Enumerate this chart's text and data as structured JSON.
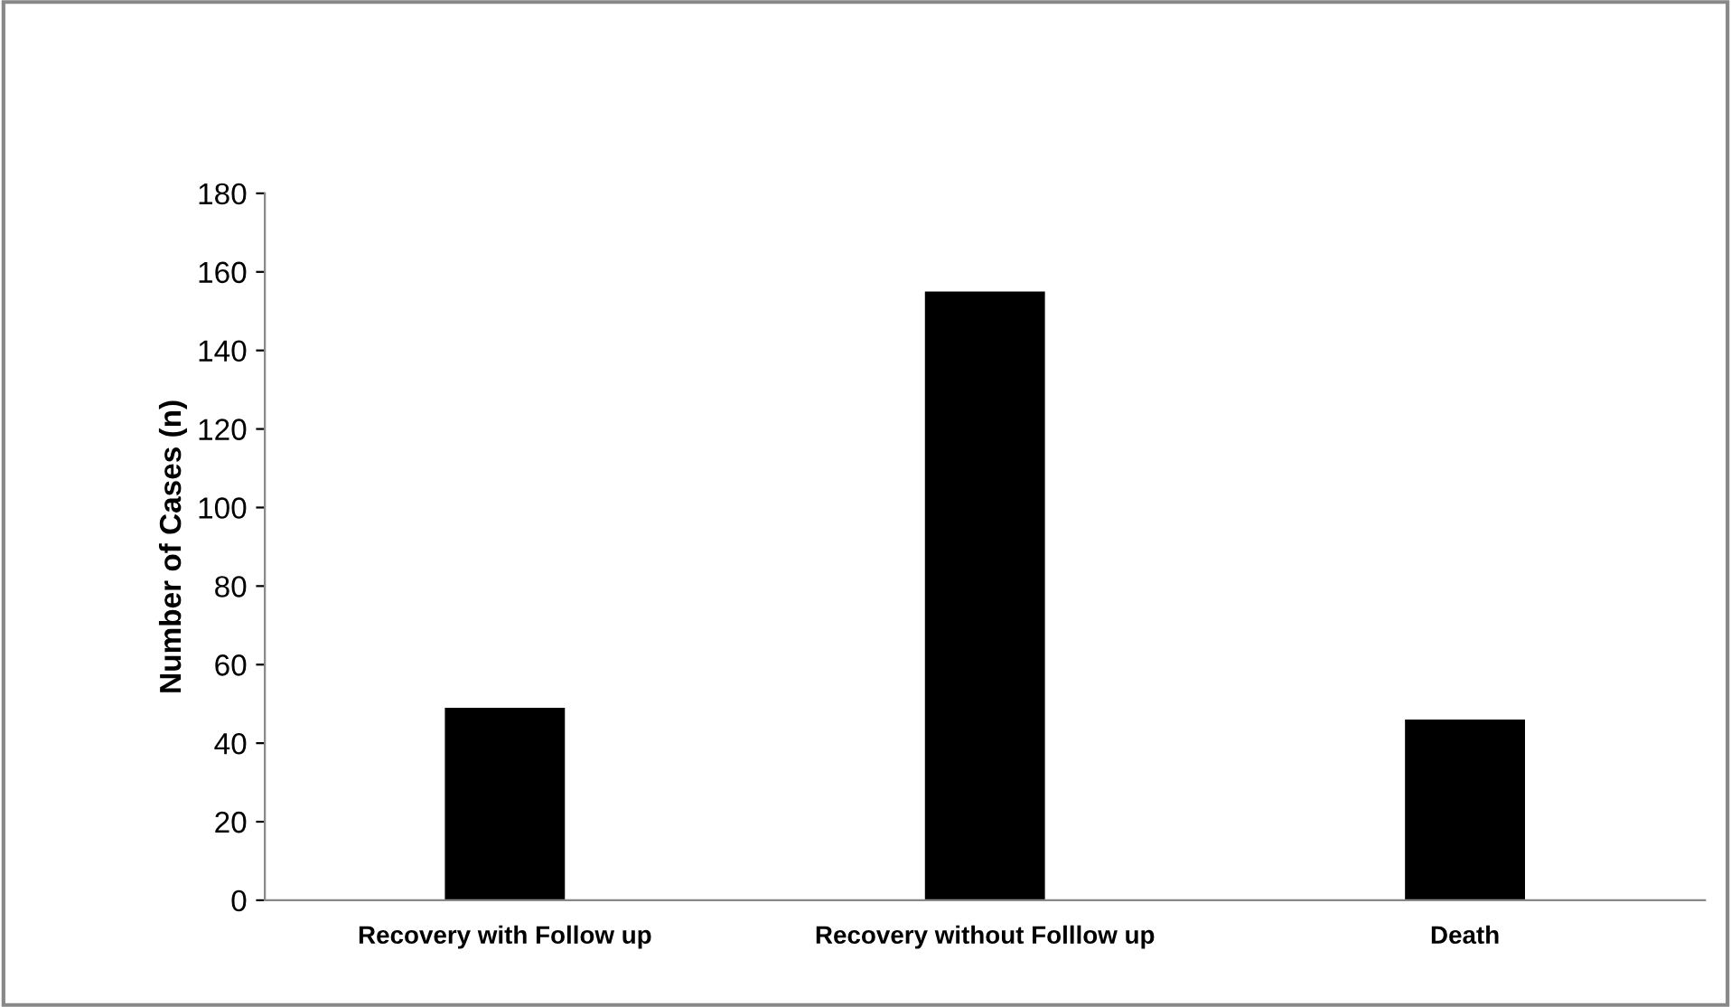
{
  "chart_data": {
    "type": "bar",
    "ylabel": "Number of Cases (n)",
    "categories": [
      "Recovery with Follow up",
      "Recovery without Folllow up",
      "Death"
    ],
    "values": [
      49,
      155,
      46
    ],
    "color": "#000000",
    "ylim": [
      0,
      180
    ],
    "yticks": [
      0,
      20,
      40,
      60,
      80,
      100,
      120,
      140,
      160,
      180
    ],
    "grid": false,
    "legend": false
  }
}
